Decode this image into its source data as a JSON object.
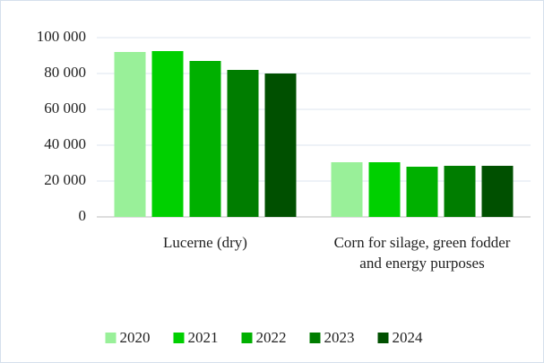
{
  "chart_data": {
    "type": "bar",
    "categories": [
      "Lucerne (dry)",
      "Corn for silage, green fodder and energy purposes"
    ],
    "series": [
      {
        "name": "2020",
        "color": "#99f099",
        "values": [
          92000,
          30500
        ]
      },
      {
        "name": "2021",
        "color": "#00d000",
        "values": [
          92500,
          30500
        ]
      },
      {
        "name": "2022",
        "color": "#00b000",
        "values": [
          87000,
          28000
        ]
      },
      {
        "name": "2023",
        "color": "#007d00",
        "values": [
          82000,
          28500
        ]
      },
      {
        "name": "2024",
        "color": "#005000",
        "values": [
          80000,
          28500
        ]
      }
    ],
    "ylim": [
      0,
      100000
    ],
    "yticks": [
      0,
      {
        "value": 20000,
        "label": "20 000"
      },
      {
        "value": 40000,
        "label": "40 000"
      },
      {
        "value": 60000,
        "label": "60 000"
      },
      {
        "value": 80000,
        "label": "80 000"
      },
      {
        "value": 100000,
        "label": "100 000"
      }
    ],
    "grid": true,
    "legend": "bottom"
  }
}
